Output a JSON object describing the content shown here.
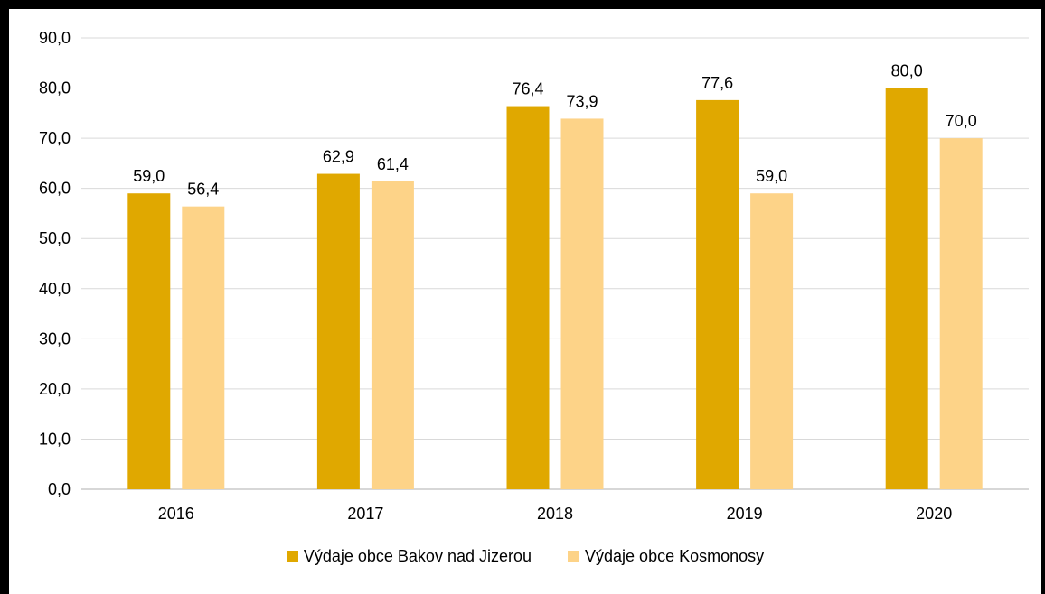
{
  "colors": {
    "series1": "#E0A800",
    "series2": "#FDD388"
  },
  "chart_data": {
    "type": "bar",
    "categories": [
      "2016",
      "2017",
      "2018",
      "2019",
      "2020"
    ],
    "series": [
      {
        "name": "Výdaje obce Bakov nad Jizerou",
        "values": [
          59.0,
          62.9,
          76.4,
          77.6,
          80.0
        ],
        "labels": [
          "59,0",
          "62,9",
          "76,4",
          "77,6",
          "80,0"
        ]
      },
      {
        "name": "Výdaje obce Kosmonosy",
        "values": [
          56.4,
          61.4,
          73.9,
          59.0,
          70.0
        ],
        "labels": [
          "56,4",
          "61,4",
          "73,9",
          "59,0",
          "70,0"
        ]
      }
    ],
    "yticks": [
      "0,0",
      "10,0",
      "20,0",
      "30,0",
      "40,0",
      "50,0",
      "60,0",
      "70,0",
      "80,0",
      "90,0"
    ],
    "ylim": [
      0,
      90
    ],
    "grid": true,
    "legend_position": "bottom",
    "title": "",
    "xlabel": "",
    "ylabel": ""
  }
}
